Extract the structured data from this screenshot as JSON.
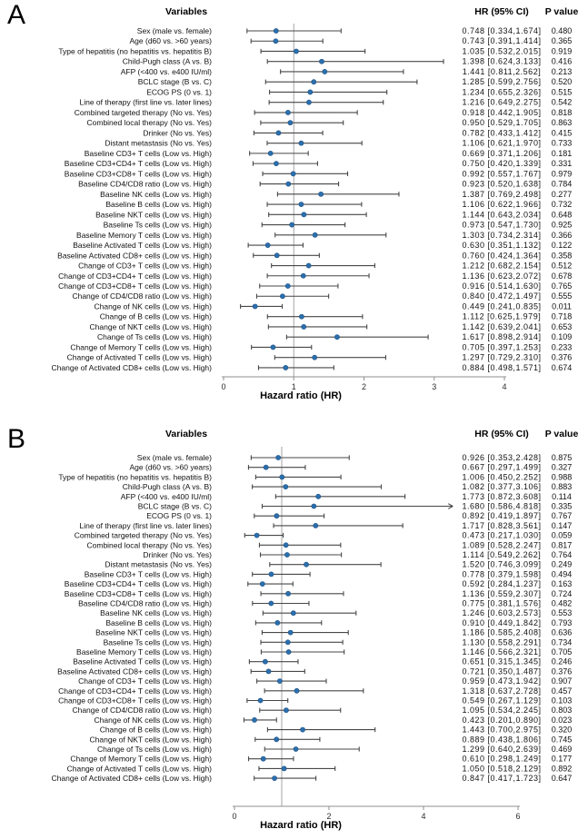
{
  "figure": {
    "xlabel": "Hazard ratio (HR)",
    "col_variables": "Variables",
    "col_hr": "HR (95% CI)",
    "col_p": "P value"
  },
  "colors": {
    "dot": "#2c6fad",
    "dot_edge": "#1f5386",
    "bar": "#474747",
    "refline": "#a6a6a6",
    "axis": "#8f8f8f",
    "text": "#111111"
  },
  "chart_data": [
    {
      "type": "scatter",
      "subtype": "forest-plot",
      "panel": "A",
      "xlabel": "Hazard ratio (HR)",
      "xlim": [
        0,
        4
      ],
      "xticks": [
        0,
        1,
        2,
        3,
        4
      ],
      "refline_x": 1,
      "grid": false,
      "rows": [
        {
          "label": "Sex (male vs. female)",
          "hr": 0.748,
          "lo": 0.334,
          "hi": 1.674,
          "p": "0.480"
        },
        {
          "label": "Age (d60 vs. >60 years)",
          "hr": 0.743,
          "lo": 0.391,
          "hi": 1.414,
          "p": "0.365"
        },
        {
          "label": "Type of hepatitis (no hepatitis vs. hepatitis B)",
          "hr": 1.035,
          "lo": 0.532,
          "hi": 2.015,
          "p": "0.919"
        },
        {
          "label": "Child-Pugh class (A vs. B)",
          "hr": 1.398,
          "lo": 0.624,
          "hi": 3.133,
          "p": "0.416"
        },
        {
          "label": "AFP (<400 vs. e400 IU/ml)",
          "hr": 1.441,
          "lo": 0.811,
          "hi": 2.562,
          "p": "0.213"
        },
        {
          "label": "BCLC  stage (B vs. C)",
          "hr": 1.285,
          "lo": 0.599,
          "hi": 2.756,
          "p": "0.520"
        },
        {
          "label": "ECOG PS (0 vs. 1)",
          "hr": 1.234,
          "lo": 0.655,
          "hi": 2.326,
          "p": "0.515"
        },
        {
          "label": "Line of therapy (first line vs. later lines)",
          "hr": 1.216,
          "lo": 0.649,
          "hi": 2.275,
          "p": "0.542"
        },
        {
          "label": "Combined targeted therapy  (No vs. Yes)",
          "hr": 0.918,
          "lo": 0.442,
          "hi": 1.905,
          "p": "0.818"
        },
        {
          "label": "Combined local therapy (No vs. Yes)",
          "hr": 0.95,
          "lo": 0.529,
          "hi": 1.705,
          "p": "0.863"
        },
        {
          "label": "Drinker (No vs. Yes)",
          "hr": 0.782,
          "lo": 0.433,
          "hi": 1.412,
          "p": "0.415"
        },
        {
          "label": "Distant metastasis (No vs. Yes)",
          "hr": 1.106,
          "lo": 0.621,
          "hi": 1.97,
          "p": "0.733"
        },
        {
          "label": "Baseline CD3+ T cells (Low vs. High)",
          "hr": 0.669,
          "lo": 0.371,
          "hi": 1.206,
          "p": "0.181"
        },
        {
          "label": "Baseline CD3+CD4+ T cells (Low vs. High)",
          "hr": 0.75,
          "lo": 0.42,
          "hi": 1.339,
          "p": "0.331"
        },
        {
          "label": "Baseline CD3+CD8+ T cells (Low vs. High)",
          "hr": 0.992,
          "lo": 0.557,
          "hi": 1.767,
          "p": "0.979"
        },
        {
          "label": "Baseline CD4/CD8 ratio (Low vs. High)",
          "hr": 0.923,
          "lo": 0.52,
          "hi": 1.638,
          "p": "0.784"
        },
        {
          "label": "Baseline NK cells (Low vs. High)",
          "hr": 1.387,
          "lo": 0.769,
          "hi": 2.498,
          "p": "0.277"
        },
        {
          "label": "Baseline B cells (Low vs. High)",
          "hr": 1.106,
          "lo": 0.622,
          "hi": 1.966,
          "p": "0.732"
        },
        {
          "label": "Baseline NKT cells (Low vs. High)",
          "hr": 1.144,
          "lo": 0.643,
          "hi": 2.034,
          "p": "0.648"
        },
        {
          "label": "Baseline Ts cells (Low vs. High)",
          "hr": 0.973,
          "lo": 0.547,
          "hi": 1.73,
          "p": "0.925"
        },
        {
          "label": "Baseline Memory T cells (Low vs. High)",
          "hr": 1.303,
          "lo": 0.734,
          "hi": 2.314,
          "p": "0.366"
        },
        {
          "label": "Baseline Activated T cells (Low vs. High)",
          "hr": 0.63,
          "lo": 0.351,
          "hi": 1.132,
          "p": "0.122"
        },
        {
          "label": "Baseline Activated CD8+ cells (Low vs. High)",
          "hr": 0.76,
          "lo": 0.424,
          "hi": 1.364,
          "p": "0.358"
        },
        {
          "label": "Change of CD3+ T cells (Low vs. High)",
          "hr": 1.212,
          "lo": 0.682,
          "hi": 2.154,
          "p": "0.512"
        },
        {
          "label": "Change of CD3+CD4+ T cells (Low vs. High)",
          "hr": 1.136,
          "lo": 0.623,
          "hi": 2.072,
          "p": "0.678"
        },
        {
          "label": "Change of CD3+CD8+ T cells (Low vs. High)",
          "hr": 0.916,
          "lo": 0.514,
          "hi": 1.63,
          "p": "0.765"
        },
        {
          "label": "Change of CD4/CD8 ratio (Low vs. High)",
          "hr": 0.84,
          "lo": 0.472,
          "hi": 1.497,
          "p": "0.555"
        },
        {
          "label": "Change of NK cells (Low vs. High)",
          "hr": 0.449,
          "lo": 0.241,
          "hi": 0.835,
          "p": "0.011"
        },
        {
          "label": "Change of B cells (Low vs. High)",
          "hr": 1.112,
          "lo": 0.625,
          "hi": 1.979,
          "p": "0.718"
        },
        {
          "label": "Change of NKT cells (Low vs. High)",
          "hr": 1.142,
          "lo": 0.639,
          "hi": 2.041,
          "p": "0.653"
        },
        {
          "label": "Change of Ts cells (Low vs. High)",
          "hr": 1.617,
          "lo": 0.898,
          "hi": 2.914,
          "p": "0.109"
        },
        {
          "label": "Change of Memory T cells (Low vs. High)",
          "hr": 0.705,
          "lo": 0.397,
          "hi": 1.253,
          "p": "0.233"
        },
        {
          "label": "Change of Activated T cells (Low vs. High)",
          "hr": 1.297,
          "lo": 0.729,
          "hi": 2.31,
          "p": "0.376"
        },
        {
          "label": "Change of Activated CD8+ cells (Low vs. High)",
          "hr": 0.884,
          "lo": 0.498,
          "hi": 1.571,
          "p": "0.674"
        }
      ]
    },
    {
      "type": "scatter",
      "subtype": "forest-plot",
      "panel": "B",
      "xlabel": "Hazard ratio (HR)",
      "xlim": [
        0,
        6
      ],
      "xticks": [
        0,
        2,
        4,
        6
      ],
      "refline_x": 1,
      "grid": false,
      "rows": [
        {
          "label": "Sex (male vs. female)",
          "hr": 0.926,
          "lo": 0.353,
          "hi": 2.428,
          "p": "0.875"
        },
        {
          "label": "Age (d60 vs. >60 years)",
          "hr": 0.667,
          "lo": 0.297,
          "hi": 1.499,
          "p": "0.327"
        },
        {
          "label": "Type of hepatitis (no hepatitis vs. hepatitis B)",
          "hr": 1.006,
          "lo": 0.45,
          "hi": 2.252,
          "p": "0.988"
        },
        {
          "label": "Child-Pugh class (A vs. B)",
          "hr": 1.082,
          "lo": 0.377,
          "hi": 3.106,
          "p": "0.883"
        },
        {
          "label": "AFP (<400 vs. e400 IU/ml)",
          "hr": 1.773,
          "lo": 0.872,
          "hi": 3.608,
          "p": "0.114"
        },
        {
          "label": "BCLC stage (B vs. C)",
          "hr": 1.68,
          "lo": 0.586,
          "hi": 4.818,
          "p": "0.335"
        },
        {
          "label": "ECOG PS (0 vs. 1)",
          "hr": 0.892,
          "lo": 0.419,
          "hi": 1.897,
          "p": "0.767"
        },
        {
          "label": "Line of therapy (first line vs. later lines)",
          "hr": 1.717,
          "lo": 0.828,
          "hi": 3.561,
          "p": "0.147"
        },
        {
          "label": "Combined targeted therapy (No vs. Yes)",
          "hr": 0.473,
          "lo": 0.217,
          "hi": 1.03,
          "p": "0.059"
        },
        {
          "label": "Combined local therapy (No vs. Yes)",
          "hr": 1.089,
          "lo": 0.528,
          "hi": 2.247,
          "p": "0.817"
        },
        {
          "label": "Drinker (No vs. Yes)",
          "hr": 1.114,
          "lo": 0.549,
          "hi": 2.262,
          "p": "0.764"
        },
        {
          "label": "Distant metastasis (No vs. Yes)",
          "hr": 1.52,
          "lo": 0.746,
          "hi": 3.099,
          "p": "0.249"
        },
        {
          "label": "Baseline CD3+ T cells (Low vs. High)",
          "hr": 0.778,
          "lo": 0.379,
          "hi": 1.598,
          "p": "0.494"
        },
        {
          "label": "Baseline CD3+CD4+ T cells (Low vs. High)",
          "hr": 0.592,
          "lo": 0.284,
          "hi": 1.237,
          "p": "0.163"
        },
        {
          "label": "Baseline CD3+CD8+ T cells (Low vs. High)",
          "hr": 1.136,
          "lo": 0.559,
          "hi": 2.307,
          "p": "0.724"
        },
        {
          "label": "Baseline CD4/CD8 ratio (Low vs. High)",
          "hr": 0.775,
          "lo": 0.381,
          "hi": 1.576,
          "p": "0.482"
        },
        {
          "label": "Baseline NK cells (Low vs. High)",
          "hr": 1.246,
          "lo": 0.603,
          "hi": 2.573,
          "p": "0.553"
        },
        {
          "label": "Baseline B cells (Low vs. High)",
          "hr": 0.91,
          "lo": 0.449,
          "hi": 1.842,
          "p": "0.793"
        },
        {
          "label": "Baseline NKT cells (Low vs. High)",
          "hr": 1.186,
          "lo": 0.585,
          "hi": 2.408,
          "p": "0.636"
        },
        {
          "label": "Baseline Ts cells (Low vs. High)",
          "hr": 1.13,
          "lo": 0.558,
          "hi": 2.291,
          "p": "0.734"
        },
        {
          "label": "Baseline Memory T cells (Low vs. High)",
          "hr": 1.146,
          "lo": 0.566,
          "hi": 2.321,
          "p": "0.705"
        },
        {
          "label": "Baseline Activated T cells (Low vs. High)",
          "hr": 0.651,
          "lo": 0.315,
          "hi": 1.345,
          "p": "0.246"
        },
        {
          "label": "Baseline Activated CD8+ cells (Low vs. High)",
          "hr": 0.721,
          "lo": 0.35,
          "hi": 1.487,
          "p": "0.376"
        },
        {
          "label": "Change of CD3+ T cells (Low vs. High)",
          "hr": 0.959,
          "lo": 0.473,
          "hi": 1.942,
          "p": "0.907"
        },
        {
          "label": "Change of CD3+CD4+ T cells (Low vs. High)",
          "hr": 1.318,
          "lo": 0.637,
          "hi": 2.728,
          "p": "0.457"
        },
        {
          "label": "Change of CD3+CD8+ T cells (Low vs. High)",
          "hr": 0.549,
          "lo": 0.267,
          "hi": 1.129,
          "p": "0.103"
        },
        {
          "label": "Change of CD4/CD8 ratio (Low vs. High)",
          "hr": 1.095,
          "lo": 0.534,
          "hi": 2.245,
          "p": "0.803"
        },
        {
          "label": "Change of NK cells (Low vs. High)",
          "hr": 0.423,
          "lo": 0.201,
          "hi": 0.89,
          "p": "0.023"
        },
        {
          "label": "Change of B cells (Low vs. High)",
          "hr": 1.443,
          "lo": 0.7,
          "hi": 2.975,
          "p": "0.320"
        },
        {
          "label": "Change of NKT cells (Low vs. High)",
          "hr": 0.889,
          "lo": 0.438,
          "hi": 1.806,
          "p": "0.745"
        },
        {
          "label": "Change of Ts cells (Low vs. High)",
          "hr": 1.299,
          "lo": 0.64,
          "hi": 2.639,
          "p": "0.469"
        },
        {
          "label": "Change of Memory T cells (Low vs. High)",
          "hr": 0.61,
          "lo": 0.298,
          "hi": 1.249,
          "p": "0.177"
        },
        {
          "label": "Change of Activated T cells (Low vs. High)",
          "hr": 1.05,
          "lo": 0.518,
          "hi": 2.129,
          "p": "0.892"
        },
        {
          "label": "Change of Activated CD8+ cells (Low vs. High)",
          "hr": 0.847,
          "lo": 0.417,
          "hi": 1.723,
          "p": "0.647"
        }
      ]
    }
  ]
}
